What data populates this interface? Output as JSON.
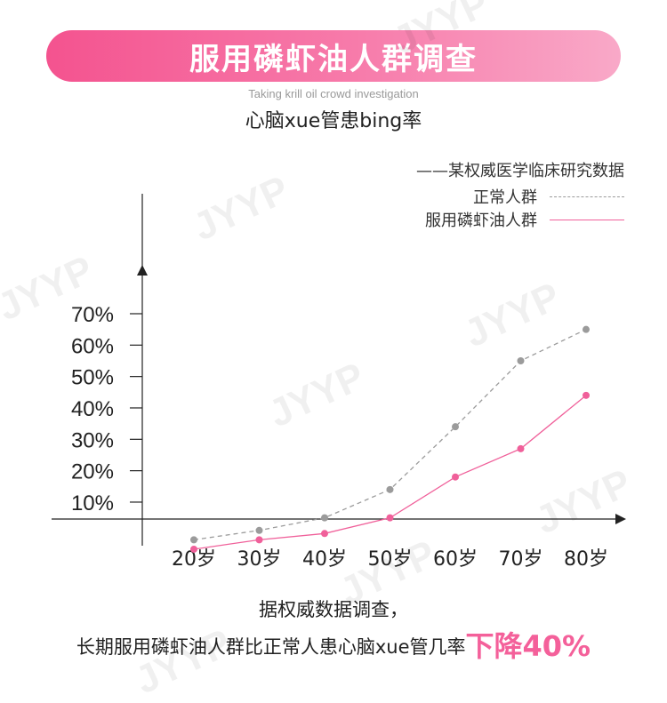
{
  "header": {
    "title": "服用磷虾油人群调查",
    "subtitle": "Taking krill oil crowd investigation"
  },
  "watermark": "JYYP",
  "colors": {
    "banner_start": "#f4538f",
    "banner_end": "#f9a9c8",
    "normal_series": "#9b9b9b",
    "krill_series": "#f0609a",
    "highlight": "#f4609a"
  },
  "chart_data": {
    "type": "line",
    "title": "心脑xue管患bing率",
    "source_note": "——某权威医学临床研究数据",
    "categories": [
      "20岁",
      "30岁",
      "40岁",
      "50岁",
      "60岁",
      "70岁",
      "80岁"
    ],
    "y_ticks": [
      "70%",
      "60%",
      "50%",
      "40%",
      "30%",
      "20%",
      "10%"
    ],
    "y_tick_values": [
      70,
      60,
      50,
      40,
      30,
      20,
      10
    ],
    "ylim": [
      -8,
      78
    ],
    "grid": false,
    "legend_position": "top-right",
    "series": [
      {
        "name": "正常人群",
        "style": "dashed",
        "values": [
          -2,
          1,
          5,
          14,
          34,
          55,
          65
        ]
      },
      {
        "name": "服用磷虾油人群",
        "style": "solid",
        "values": [
          -5,
          -2,
          0,
          5,
          18,
          27,
          44
        ]
      }
    ]
  },
  "conclusion": {
    "line1": "据权威数据调查，",
    "line2": "长期服用磷虾油人群比正常人患心脑xue管几率",
    "highlight": "下降40%"
  }
}
